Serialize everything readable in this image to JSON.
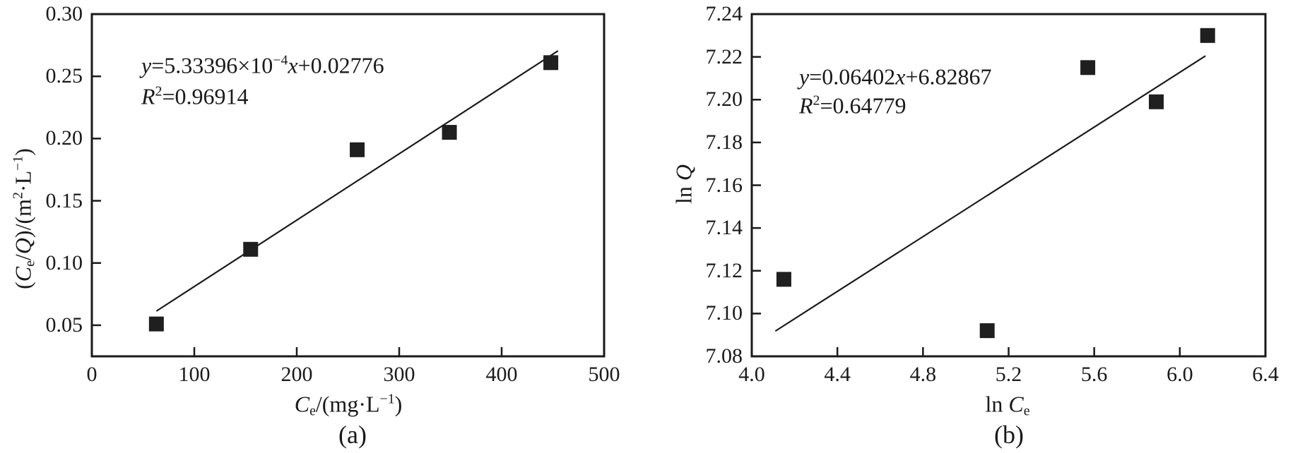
{
  "figure": {
    "background": "#ffffff",
    "axis_color": "#1a1a1a",
    "captions": {
      "a": "(a)",
      "b": "(b)"
    }
  },
  "chart_data": [
    {
      "id": "a",
      "type": "scatter",
      "caption": "(a)",
      "title": "",
      "xlabel": "Cₑ/(mg·L⁻¹)",
      "ylabel": "(Cₑ/Q)/(m²·L⁻¹)",
      "xlim": [
        0,
        500
      ],
      "ylim": [
        0.025,
        0.3
      ],
      "xticks": [
        0,
        100,
        200,
        300,
        400,
        500
      ],
      "xtick_labels": [
        "0",
        "100",
        "200",
        "300",
        "400",
        "500"
      ],
      "yticks": [
        0.05,
        0.1,
        0.15,
        0.2,
        0.25,
        0.3
      ],
      "ytick_labels": [
        "0.05",
        "0.10",
        "0.15",
        "0.20",
        "0.25",
        "0.30"
      ],
      "points": [
        [
          63,
          0.051
        ],
        [
          155,
          0.111
        ],
        [
          259,
          0.191
        ],
        [
          349,
          0.205
        ],
        [
          448,
          0.261
        ]
      ],
      "fit": {
        "slope": 0.000533396,
        "intercept": 0.02776,
        "x_start": 63,
        "x_end": 455,
        "equation": "y=5.33396×10⁻⁴x+0.02776",
        "r_squared": "R²=0.96914"
      },
      "grid": false,
      "legend": false,
      "marker": {
        "shape": "square",
        "size": 21,
        "color": "#1f1f1f"
      },
      "line_color": "#1a1a1a"
    },
    {
      "id": "b",
      "type": "scatter",
      "caption": "(b)",
      "title": "",
      "xlabel": "ln Cₑ",
      "ylabel": "ln Q",
      "xlim": [
        4.0,
        6.4
      ],
      "ylim": [
        7.08,
        7.24
      ],
      "xticks": [
        4.0,
        4.4,
        4.8,
        5.2,
        5.6,
        6.0,
        6.4
      ],
      "xtick_labels": [
        "4.0",
        "4.4",
        "4.8",
        "5.2",
        "5.6",
        "6.0",
        "6.4"
      ],
      "yticks": [
        7.08,
        7.1,
        7.12,
        7.14,
        7.16,
        7.18,
        7.2,
        7.22,
        7.24
      ],
      "ytick_labels": [
        "7.08",
        "7.10",
        "7.12",
        "7.14",
        "7.16",
        "7.18",
        "7.20",
        "7.22",
        "7.24"
      ],
      "points": [
        [
          4.15,
          7.116
        ],
        [
          5.1,
          7.092
        ],
        [
          5.57,
          7.215
        ],
        [
          5.89,
          7.199
        ],
        [
          6.13,
          7.23
        ]
      ],
      "fit": {
        "slope": 0.06402,
        "intercept": 6.82867,
        "x_start": 4.11,
        "x_end": 6.12,
        "equation": "y=0.06402x+6.82867",
        "r_squared": "R²=0.64779"
      },
      "grid": false,
      "legend": false,
      "marker": {
        "shape": "square",
        "size": 21,
        "color": "#1f1f1f"
      },
      "line_color": "#1a1a1a"
    }
  ],
  "rich": {
    "a": {
      "ylabel": [
        {
          "t": "("
        },
        {
          "t": "C",
          "it": true
        },
        {
          "t": "e",
          "sub": true
        },
        {
          "t": "/"
        },
        {
          "t": "Q",
          "it": true
        },
        {
          "t": ")/(m"
        },
        {
          "t": "2",
          "sup": true
        },
        {
          "t": "·L"
        },
        {
          "t": "−1",
          "sup": true
        },
        {
          "t": ")"
        }
      ],
      "xlabel": [
        {
          "t": "C",
          "it": true
        },
        {
          "t": "e",
          "sub": true
        },
        {
          "t": "/(mg·L"
        },
        {
          "t": "−1",
          "sup": true
        },
        {
          "t": ")"
        }
      ],
      "equation": [
        {
          "t": "y",
          "it": true
        },
        {
          "t": "=5.33396×10"
        },
        {
          "t": "−4",
          "sup": true
        },
        {
          "t": "x",
          "it": true
        },
        {
          "t": "+0.02776"
        }
      ],
      "r2": [
        {
          "t": "R",
          "it": true
        },
        {
          "t": "2",
          "sup": true
        },
        {
          "t": "=0.96914"
        }
      ]
    },
    "b": {
      "ylabel": [
        {
          "t": "ln "
        },
        {
          "t": "Q",
          "it": true
        }
      ],
      "xlabel": [
        {
          "t": "ln "
        },
        {
          "t": "C",
          "it": true
        },
        {
          "t": "e",
          "sub": true
        }
      ],
      "equation": [
        {
          "t": "y",
          "it": true
        },
        {
          "t": "=0.06402"
        },
        {
          "t": "x",
          "it": true
        },
        {
          "t": "+6.82867"
        }
      ],
      "r2": [
        {
          "t": "R",
          "it": true
        },
        {
          "t": "2",
          "sup": true
        },
        {
          "t": "=0.64779"
        }
      ]
    }
  }
}
